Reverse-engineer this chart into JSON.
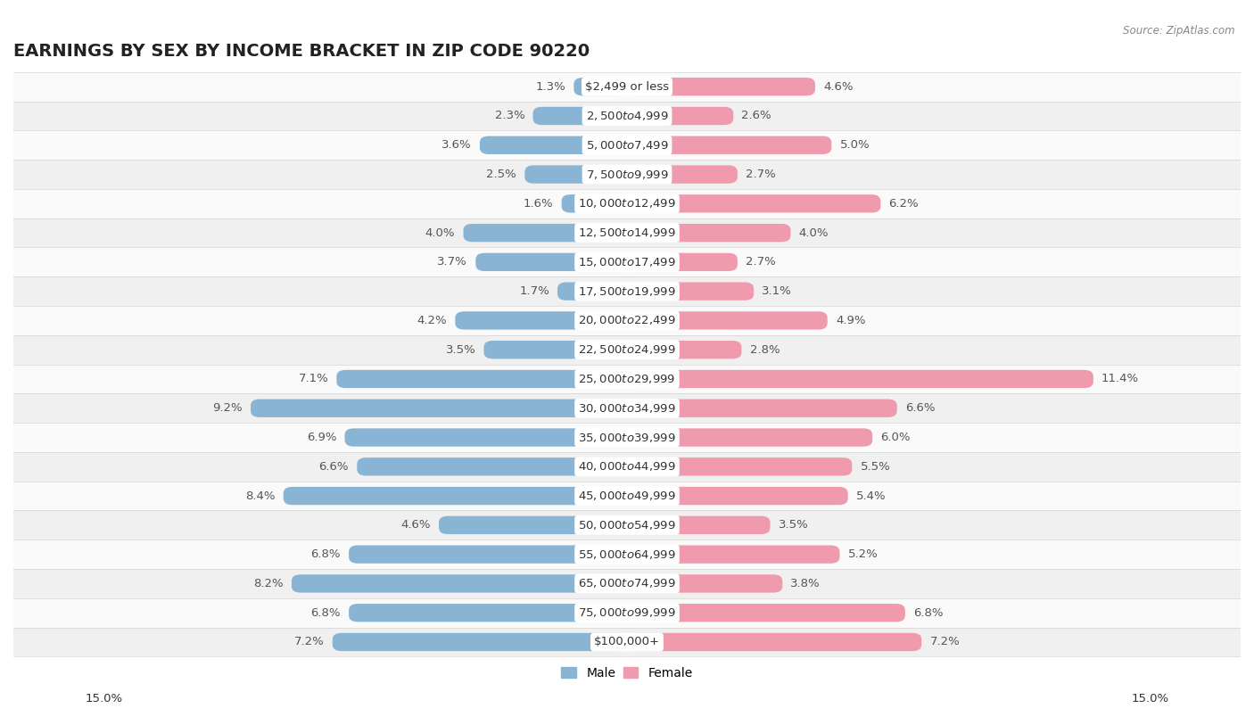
{
  "title": "EARNINGS BY SEX BY INCOME BRACKET IN ZIP CODE 90220",
  "source": "Source: ZipAtlas.com",
  "categories": [
    "$2,499 or less",
    "$2,500 to $4,999",
    "$5,000 to $7,499",
    "$7,500 to $9,999",
    "$10,000 to $12,499",
    "$12,500 to $14,999",
    "$15,000 to $17,499",
    "$17,500 to $19,999",
    "$20,000 to $22,499",
    "$22,500 to $24,999",
    "$25,000 to $29,999",
    "$30,000 to $34,999",
    "$35,000 to $39,999",
    "$40,000 to $44,999",
    "$45,000 to $49,999",
    "$50,000 to $54,999",
    "$55,000 to $64,999",
    "$65,000 to $74,999",
    "$75,000 to $99,999",
    "$100,000+"
  ],
  "male_values": [
    1.3,
    2.3,
    3.6,
    2.5,
    1.6,
    4.0,
    3.7,
    1.7,
    4.2,
    3.5,
    7.1,
    9.2,
    6.9,
    6.6,
    8.4,
    4.6,
    6.8,
    8.2,
    6.8,
    7.2
  ],
  "female_values": [
    4.6,
    2.6,
    5.0,
    2.7,
    6.2,
    4.0,
    2.7,
    3.1,
    4.9,
    2.8,
    11.4,
    6.6,
    6.0,
    5.5,
    5.4,
    3.5,
    5.2,
    3.8,
    6.8,
    7.2
  ],
  "male_color": "#89b4d4",
  "female_color": "#f09aad",
  "row_color_even": "#f0f0f0",
  "row_color_odd": "#fafafa",
  "background_color": "#ffffff",
  "label_color": "#555555",
  "xlim": 15.0,
  "title_fontsize": 14,
  "label_fontsize": 9.5,
  "category_fontsize": 9.5,
  "value_fontsize": 9.5
}
